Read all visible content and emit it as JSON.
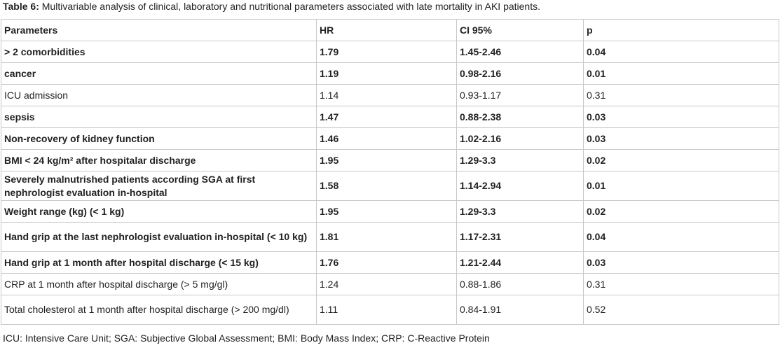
{
  "caption": {
    "label": "Table 6:",
    "text": " Multivariable analysis of clinical, laboratory and nutritional parameters associated with late mortality in AKI patients."
  },
  "table": {
    "headers": [
      "Parameters",
      "HR",
      "CI 95%",
      "p"
    ],
    "rows": [
      {
        "param": "> 2 comorbidities",
        "hr": "1.79",
        "ci": "1.45-2.46",
        "p": "0.04",
        "bold": true
      },
      {
        "param": "cancer",
        "hr": "1.19",
        "ci": "0.98-2.16",
        "p": "0.01",
        "bold": true
      },
      {
        "param": "ICU admission",
        "hr": "1.14",
        "ci": "0.93-1.17",
        "p": "0.31",
        "bold": false
      },
      {
        "param": "sepsis",
        "hr": "1.47",
        "ci": "0.88-2.38",
        "p": "0.03",
        "bold": true
      },
      {
        "param": "Non-recovery of kidney function",
        "hr": "1.46",
        "ci": "1.02-2.16",
        "p": "0.03",
        "bold": true
      },
      {
        "param": "BMI < 24 kg/m² after hospitalar discharge",
        "hr": "1.95",
        "ci": "1.29-3.3",
        "p": "0.02",
        "bold": true
      },
      {
        "param": "Severely malnutrished patients according SGA at first nephrologist evaluation in-hospital",
        "hr": "1.58",
        "ci": "1.14-2.94",
        "p": "0.01",
        "bold": true
      },
      {
        "param": "Weight range (kg) (< 1 kg)",
        "hr": "1.95",
        "ci": "1.29-3.3",
        "p": "0.02",
        "bold": true
      },
      {
        "param": "Hand grip at the last nephrologist evaluation in-hospital (< 10 kg)",
        "hr": "1.81",
        "ci": "1.17-2.31",
        "p": "0.04",
        "bold": true
      },
      {
        "param": "Hand grip at 1 month after hospital discharge  (< 15 kg)",
        "hr": "1.76",
        "ci": "1.21-2.44",
        "p": "0.03",
        "bold": true
      },
      {
        "param": "CRP at 1 month after hospital discharge (> 5 mg/gl)",
        "hr": "1.24",
        "ci": "0.88-1.86",
        "p": "0.31",
        "bold": false
      },
      {
        "param": "Total cholesterol  at 1 month after hospital discharge (> 200 mg/dl)",
        "hr": "1.11",
        "ci": "0.84-1.91",
        "p": "0.52",
        "bold": false
      }
    ]
  },
  "footnote": "ICU: Intensive Care Unit; SGA: Subjective Global Assessment; BMI: Body Mass Index; CRP: C-Reactive Protein"
}
